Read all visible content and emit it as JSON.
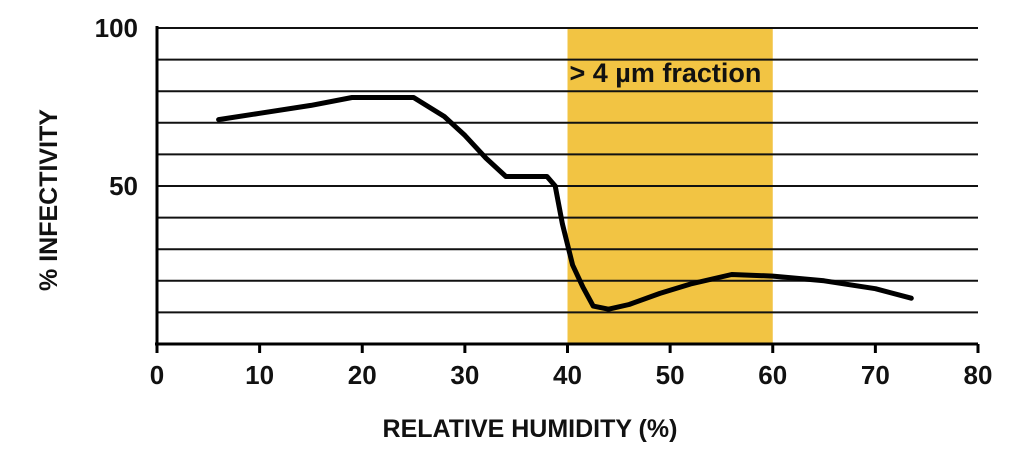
{
  "chart_data": {
    "type": "line",
    "xlabel": "RELATIVE HUMIDITY (%)",
    "ylabel": "% INFECTIVITY",
    "xlim": [
      0,
      80
    ],
    "ylim": [
      0,
      100
    ],
    "x_ticks": [
      "0",
      "10",
      "20",
      "30",
      "40",
      "50",
      "60",
      "70",
      "80"
    ],
    "y_ticks": [
      "50",
      "100"
    ],
    "grid": "horizontal",
    "gridline_values": [
      10,
      20,
      30,
      40,
      50,
      60,
      70,
      80,
      90,
      100
    ],
    "highlight_band": {
      "x_range": [
        40,
        60
      ],
      "label": "> 4 µm fraction",
      "color": "#f2c443"
    },
    "line_color": "#000000",
    "series": [
      {
        "x": [
          6,
          10,
          15,
          19,
          22,
          25,
          28,
          30,
          32,
          34,
          36,
          38,
          38.8,
          39.5,
          40.5,
          41.5,
          42.5,
          44,
          46,
          49,
          52,
          56,
          60,
          65,
          70,
          73.5
        ],
        "y": [
          71,
          73,
          75.5,
          78,
          78,
          78,
          72,
          66,
          59,
          53,
          53,
          53,
          50,
          38,
          25,
          18,
          12,
          11,
          12.5,
          16,
          19,
          22,
          21.5,
          20,
          17.5,
          14.5
        ]
      }
    ]
  }
}
